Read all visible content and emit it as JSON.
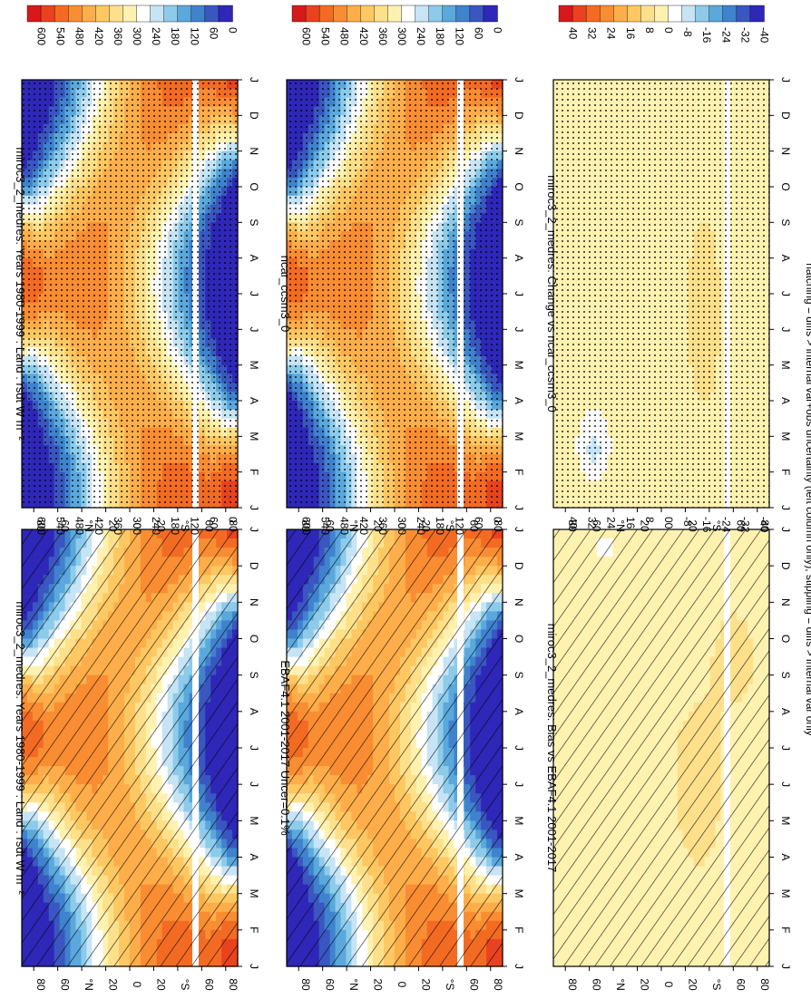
{
  "figure": {
    "footnote": "hatching = diffs > internal var+obs uncertainty (left column only); stippling = diffs > internal var only",
    "x_months": [
      "J",
      "F",
      "M",
      "A",
      "M",
      "J",
      "J",
      "A",
      "S",
      "O",
      "N",
      "D",
      "J"
    ],
    "y_ticks": [
      "80",
      "60",
      "°N",
      "20",
      "0",
      "20",
      "°S",
      "60",
      "80"
    ],
    "colorscale_main": [
      "#d7191c",
      "#e8431e",
      "#f36b23",
      "#f98d33",
      "#fdae4a",
      "#fdc762",
      "#fee08b",
      "#fff2b0",
      "#ffffff",
      "#c6e4f5",
      "#8ccbea",
      "#5aa8dc",
      "#3f82cd",
      "#3a56c0",
      "#2e27b8"
    ],
    "colorscale_diff": [
      "#d7191c",
      "#e8431e",
      "#f36b23",
      "#f98d33",
      "#fdae4a",
      "#fdc762",
      "#fee08b",
      "#fff2b0",
      "#ffffff",
      "#c6e4f5",
      "#8ccbea",
      "#5aa8dc",
      "#3f82cd",
      "#3a56c0",
      "#2e27b8"
    ]
  },
  "chart_data": [
    {
      "type": "heatmap",
      "title": "miroc3_2_medres: Years 1980-1999 : Land : rsdt W m⁻²",
      "x": [
        "J",
        "F",
        "M",
        "A",
        "M",
        "J",
        "J",
        "A",
        "S",
        "O",
        "N",
        "D",
        "J"
      ],
      "y": [
        "80N",
        "60N",
        "40N",
        "20N",
        "0",
        "20S",
        "40S",
        "60S",
        "80S"
      ],
      "colorbar_labels": [
        "600",
        "540",
        "480",
        "420",
        "360",
        "300",
        "240",
        "180",
        "120",
        "60",
        "0"
      ],
      "zlim": [
        0,
        600
      ],
      "overlay": "hatching",
      "field": "insolation"
    },
    {
      "type": "heatmap",
      "title": "EBAF4.1 2001-2017 Uncer=0.1%",
      "x": [
        "J",
        "F",
        "M",
        "A",
        "M",
        "J",
        "J",
        "A",
        "S",
        "O",
        "N",
        "D",
        "J"
      ],
      "y": [
        "80N",
        "60N",
        "40N",
        "20N",
        "0",
        "20S",
        "40S",
        "60S",
        "80S"
      ],
      "colorbar_labels": [
        "600",
        "540",
        "480",
        "420",
        "360",
        "300",
        "240",
        "180",
        "120",
        "60",
        "0"
      ],
      "zlim": [
        0,
        600
      ],
      "overlay": "hatching",
      "field": "insolation"
    },
    {
      "type": "heatmap",
      "title": "miroc3_2_medres: Bias vs EBAF4.1 2001-2017",
      "x": [
        "J",
        "F",
        "M",
        "A",
        "M",
        "J",
        "J",
        "A",
        "S",
        "O",
        "N",
        "D",
        "J"
      ],
      "y": [
        "80N",
        "60N",
        "40N",
        "20N",
        "0",
        "20S",
        "40S",
        "60S",
        "80S"
      ],
      "colorbar_labels": [
        "40",
        "32",
        "24",
        "16",
        "8",
        "0",
        "-8",
        "-16",
        "-24",
        "-32",
        "-40"
      ],
      "zlim": [
        -40,
        40
      ],
      "overlay": "hatching",
      "field": "bias"
    },
    {
      "type": "heatmap",
      "title": "miroc3_2_medres: Years 1980-1999 : Land : rsdt W m⁻²",
      "x": [
        "J",
        "F",
        "M",
        "A",
        "M",
        "J",
        "J",
        "A",
        "S",
        "O",
        "N",
        "D",
        "J"
      ],
      "y": [
        "80N",
        "60N",
        "40N",
        "20N",
        "0",
        "20S",
        "40S",
        "60S",
        "80S"
      ],
      "colorbar_labels": [
        "600",
        "540",
        "480",
        "420",
        "360",
        "300",
        "240",
        "180",
        "120",
        "60",
        "0"
      ],
      "zlim": [
        0,
        600
      ],
      "overlay": "stippling",
      "field": "insolation"
    },
    {
      "type": "heatmap",
      "title": "ncar_ccsm3_0",
      "x": [
        "J",
        "F",
        "M",
        "A",
        "M",
        "J",
        "J",
        "A",
        "S",
        "O",
        "N",
        "D",
        "J"
      ],
      "y": [
        "80N",
        "60N",
        "40N",
        "20N",
        "0",
        "20S",
        "40S",
        "60S",
        "80S"
      ],
      "colorbar_labels": [
        "600",
        "540",
        "480",
        "420",
        "360",
        "300",
        "240",
        "180",
        "120",
        "60",
        "0"
      ],
      "zlim": [
        0,
        600
      ],
      "overlay": "stippling",
      "field": "insolation"
    },
    {
      "type": "heatmap",
      "title": "miroc3_2_medres: Change vs ncar_ccsm3_0",
      "x": [
        "J",
        "F",
        "M",
        "A",
        "M",
        "J",
        "J",
        "A",
        "S",
        "O",
        "N",
        "D",
        "J"
      ],
      "y": [
        "80N",
        "60N",
        "40N",
        "20N",
        "0",
        "20S",
        "40S",
        "60S",
        "80S"
      ],
      "colorbar_labels": [
        "40",
        "32",
        "24",
        "16",
        "8",
        "0",
        "-8",
        "-16",
        "-24",
        "-32",
        "-40"
      ],
      "zlim": [
        -40,
        40
      ],
      "overlay": "stippling",
      "field": "change"
    }
  ]
}
